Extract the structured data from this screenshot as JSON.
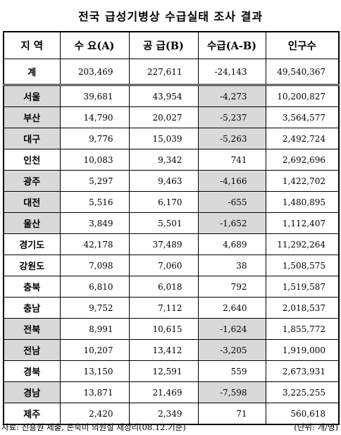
{
  "title": "전국 급성기병상 수급실태 조사 결과",
  "headers": [
    "지 역",
    "수 요(A)",
    "공 급(B)",
    "수급(A-B)",
    "인구수"
  ],
  "total": {
    "region": "계",
    "demand": "203,469",
    "supply": "227,611",
    "diff": "-24,143",
    "population": "49,540,367"
  },
  "rows": [
    {
      "region": "서울",
      "demand": "39,681",
      "supply": "43,954",
      "diff": "-4,273",
      "population": "10,200,827",
      "shaded": true
    },
    {
      "region": "부산",
      "demand": "14,790",
      "supply": "20,027",
      "diff": "-5,237",
      "population": "3,564,577",
      "shaded": true
    },
    {
      "region": "대구",
      "demand": "9,776",
      "supply": "15,039",
      "diff": "-5,263",
      "population": "2,492,724",
      "shaded": true
    },
    {
      "region": "인천",
      "demand": "10,083",
      "supply": "9,342",
      "diff": "741",
      "population": "2,692,696",
      "shaded": false
    },
    {
      "region": "광주",
      "demand": "5,297",
      "supply": "9,463",
      "diff": "-4,166",
      "population": "1,422,702",
      "shaded": true
    },
    {
      "region": "대전",
      "demand": "5,516",
      "supply": "6,170",
      "diff": "-655",
      "population": "1,480,895",
      "shaded": true
    },
    {
      "region": "울산",
      "demand": "3,849",
      "supply": "5,501",
      "diff": "-1,652",
      "population": "1,112,407",
      "shaded": true
    },
    {
      "region": "경기도",
      "demand": "42,178",
      "supply": "37,489",
      "diff": "4,689",
      "population": "11,292,264",
      "shaded": false
    },
    {
      "region": "강원도",
      "demand": "7,098",
      "supply": "7,060",
      "diff": "38",
      "population": "1,508,575",
      "shaded": false
    },
    {
      "region": "충북",
      "demand": "6,810",
      "supply": "6,018",
      "diff": "792",
      "population": "1,519,587",
      "shaded": false
    },
    {
      "region": "충남",
      "demand": "9,752",
      "supply": "7,112",
      "diff": "2,640",
      "population": "2,018,537",
      "shaded": false
    },
    {
      "region": "전북",
      "demand": "8,991",
      "supply": "10,615",
      "diff": "-1,624",
      "population": "1,855,772",
      "shaded": true
    },
    {
      "region": "전남",
      "demand": "10,207",
      "supply": "13,412",
      "diff": "-3,205",
      "population": "1,919,000",
      "shaded": true
    },
    {
      "region": "경북",
      "demand": "13,150",
      "supply": "12,591",
      "diff": "559",
      "population": "2,673,931",
      "shaded": false
    },
    {
      "region": "경남",
      "demand": "13,871",
      "supply": "21,469",
      "diff": "-7,598",
      "population": "3,225,255",
      "shaded": true
    },
    {
      "region": "제주",
      "demand": "2,420",
      "supply": "2,349",
      "diff": "71",
      "population": "560,618",
      "shaded": false
    }
  ],
  "footer": {
    "source": "자료: 진흥원 제출, 손숙미 의원실 재정리(08.12.기준)",
    "unit": "(단위: 개/명)"
  }
}
